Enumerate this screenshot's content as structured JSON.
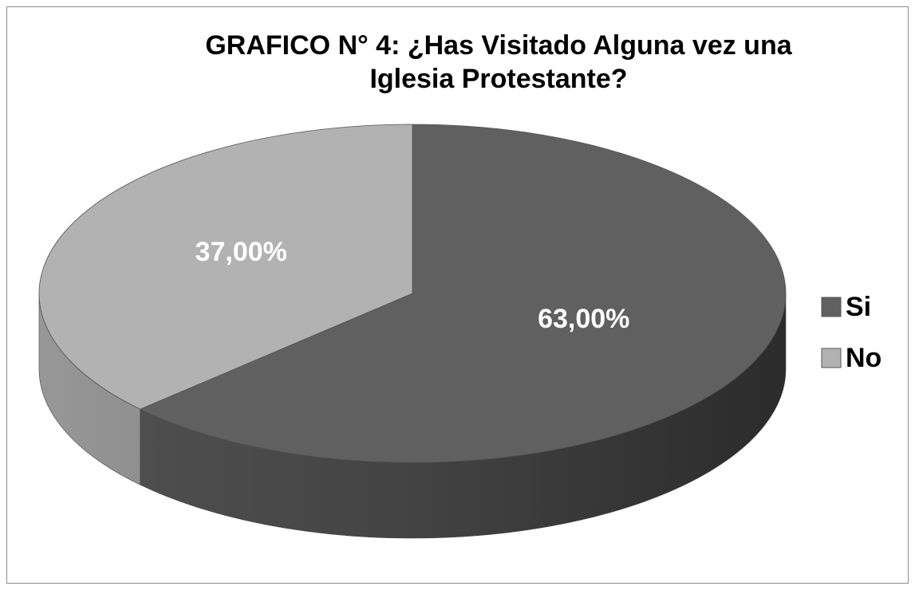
{
  "chart_data": {
    "type": "pie3d",
    "title": "GRAFICO N° 4: ¿Has Visitado Alguna vez una Iglesia Protestante?",
    "categories": [
      "Si",
      "No"
    ],
    "values": [
      63,
      37
    ],
    "value_labels": [
      "63,00%",
      "37,00%"
    ],
    "colors": [
      "#606060",
      "#b2b2b2"
    ],
    "legend": "right"
  }
}
